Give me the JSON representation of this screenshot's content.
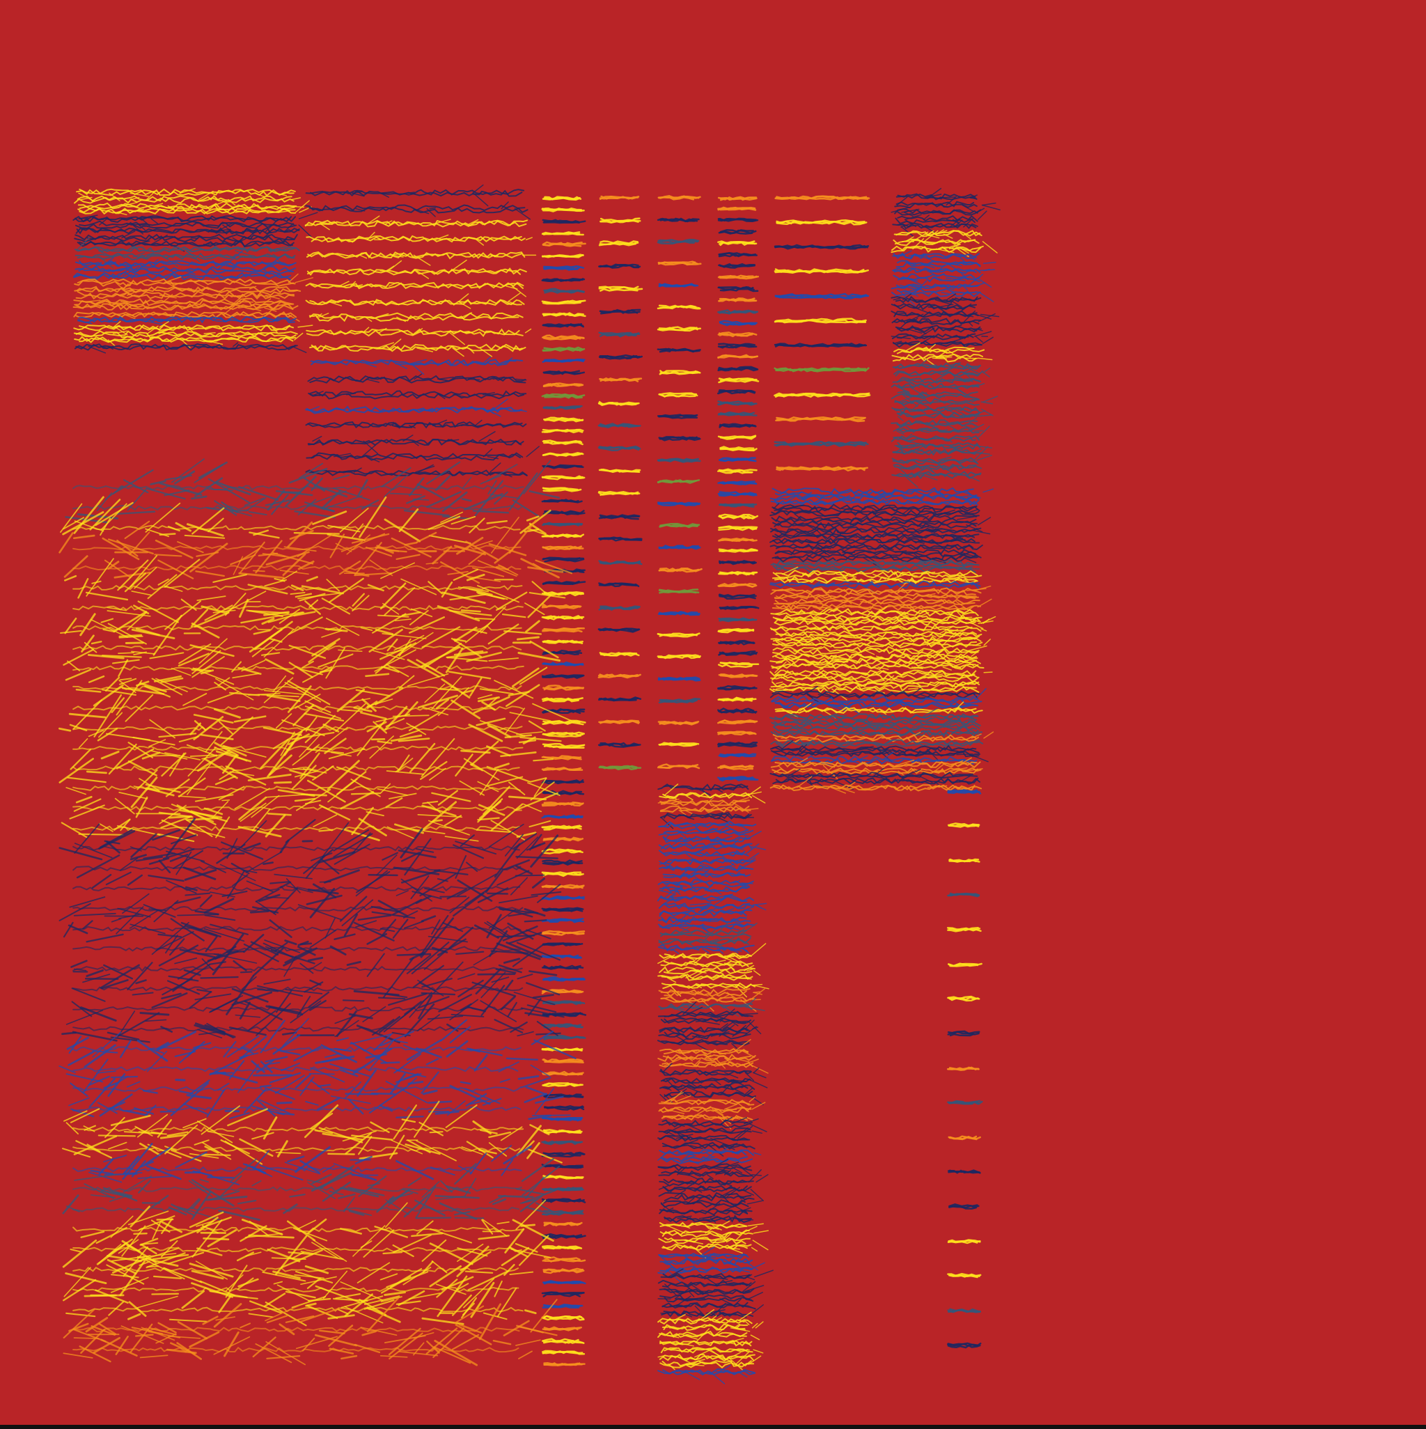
{
  "artwork": {
    "background_color": "#b92427",
    "palette": {
      "yellow": "#ffe21c",
      "orange": "#f6901e",
      "navy": "#1c2862",
      "blue": "#1e4cb0",
      "green": "#6f9b3c",
      "slate": "#34577a"
    }
  }
}
